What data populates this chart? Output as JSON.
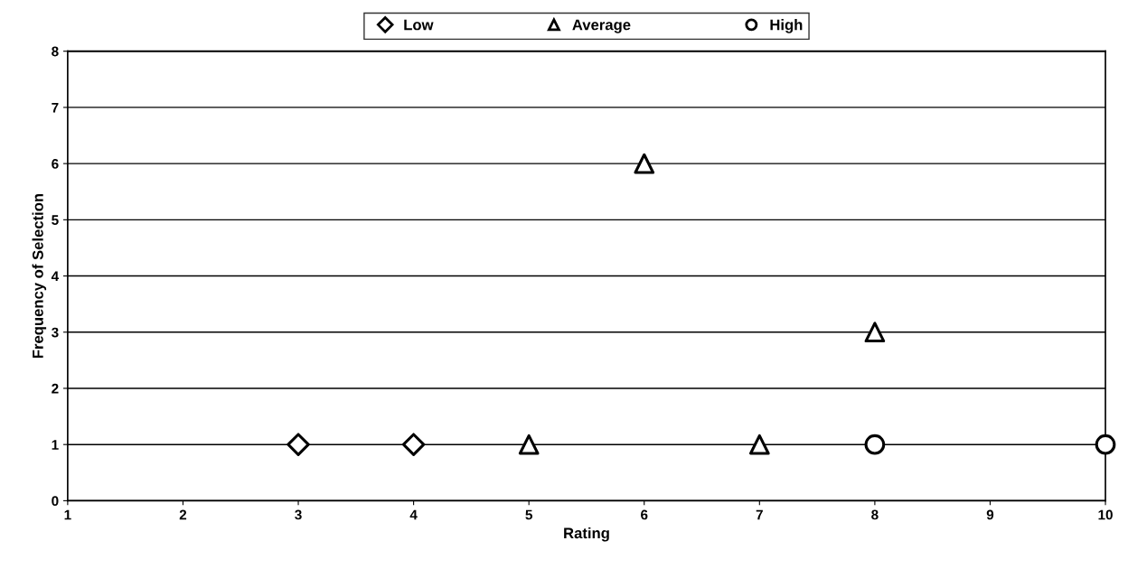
{
  "chart_data": {
    "type": "scatter",
    "xlabel": "Rating",
    "ylabel": "Frequency of Selection",
    "series": [
      {
        "name": "Low",
        "color": "#000000",
        "marker": "diamond",
        "x": [
          3,
          4
        ],
        "values": [
          1,
          1
        ]
      },
      {
        "name": "Average",
        "color": "#000000",
        "marker": "triangle",
        "x": [
          5,
          6,
          7,
          8
        ],
        "values": [
          1,
          6,
          1,
          3
        ]
      },
      {
        "name": "High",
        "color": "#000000",
        "marker": "circle",
        "x": [
          8,
          10
        ],
        "values": [
          1,
          1
        ]
      }
    ],
    "xlim": [
      1,
      10
    ],
    "xticks": [
      1,
      2,
      3,
      4,
      5,
      6,
      7,
      8,
      9,
      10
    ],
    "ylim": [
      0,
      8
    ],
    "yticks": [
      0,
      1,
      2,
      3,
      4,
      5,
      6,
      7,
      8
    ],
    "grid": "y",
    "legend": "top"
  }
}
